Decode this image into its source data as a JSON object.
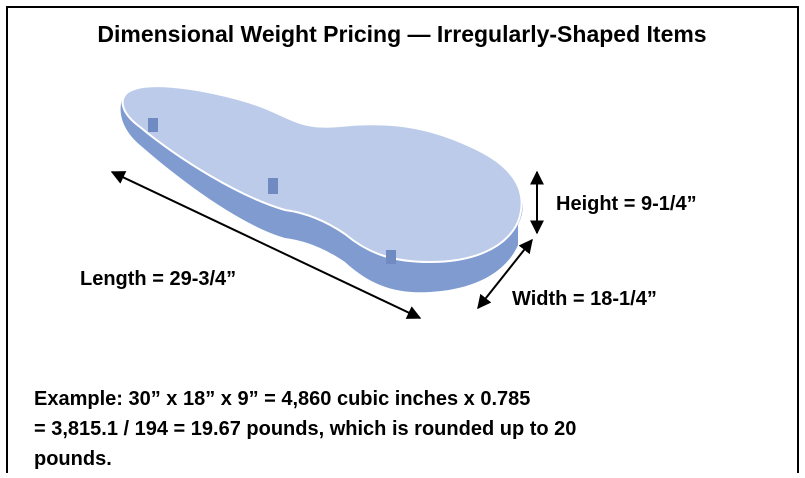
{
  "title": "Dimensional Weight Pricing — Irregularly-Shaped Items",
  "labels": {
    "height": "Height = 9-1/4”",
    "length": "Length = 29-3/4”",
    "width": "Width = 18-1/4”"
  },
  "example": {
    "lines": [
      "Example: 30” x 18” x 9” = 4,860 cubic inches x 0.785",
      "= 3,815.1 / 194 = 19.67 pounds, which is rounded up to 20",
      "pounds."
    ]
  }
}
